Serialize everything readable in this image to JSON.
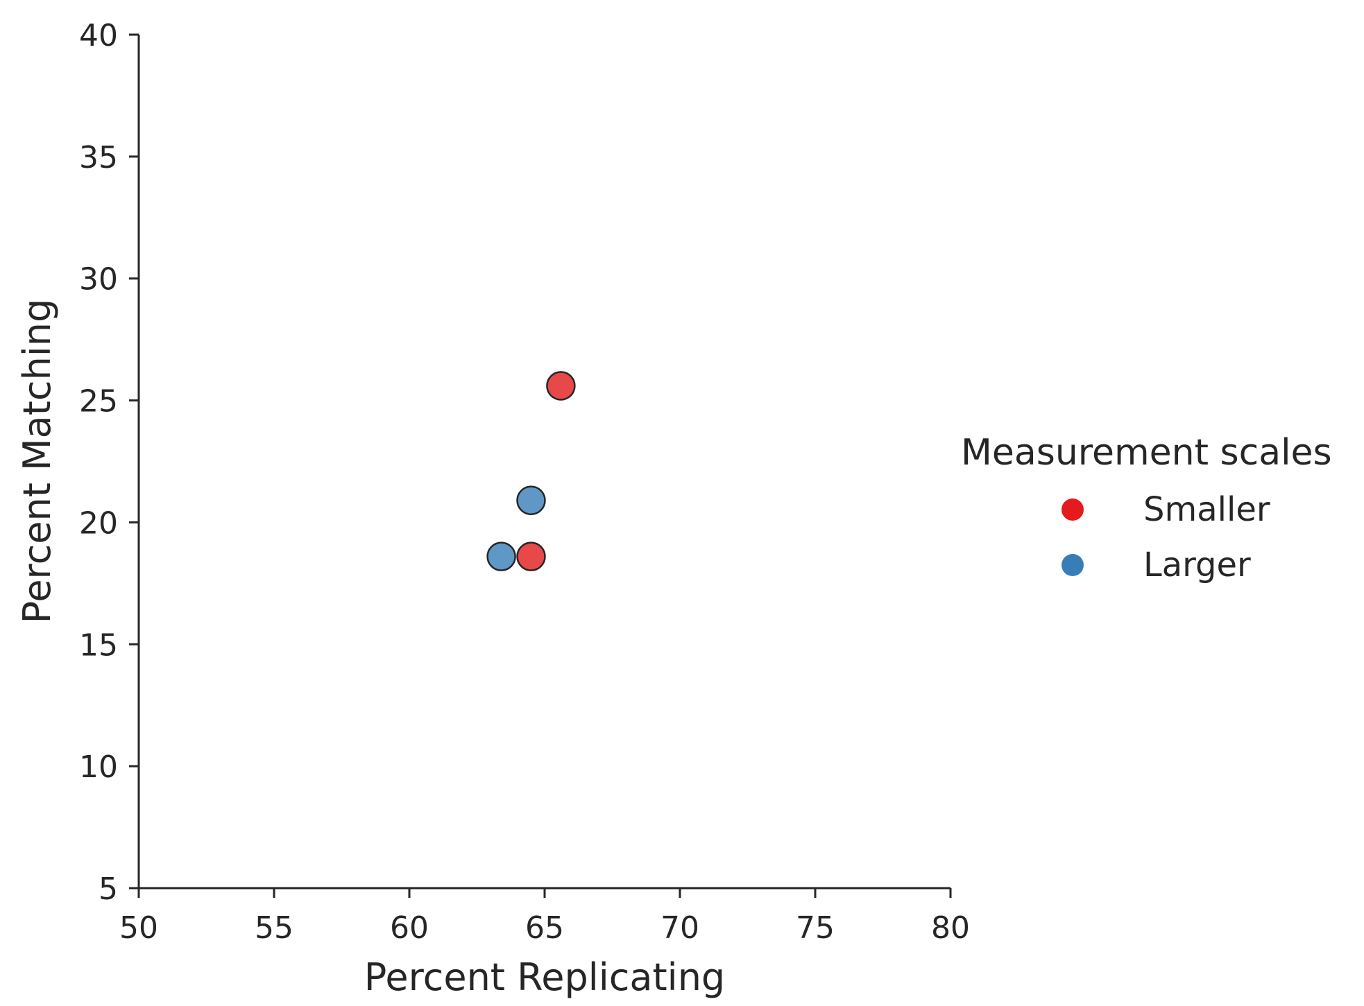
{
  "chart_data": {
    "type": "scatter",
    "xlabel": "Percent Replicating",
    "ylabel": "Percent Matching",
    "xlim": [
      50,
      80
    ],
    "ylim": [
      5,
      40
    ],
    "xticks": [
      "50",
      "55",
      "60",
      "65",
      "70",
      "75",
      "80"
    ],
    "yticks": [
      "5",
      "10",
      "15",
      "20",
      "25",
      "30",
      "35",
      "40"
    ],
    "grid": false,
    "legend": {
      "title": "Measurement scales",
      "placement": "center-right, outside plot"
    },
    "series": [
      {
        "name": "Smaller",
        "color": "#e41a1c",
        "points": [
          {
            "x": 65.6,
            "y": 25.6
          },
          {
            "x": 64.5,
            "y": 18.6
          }
        ]
      },
      {
        "name": "Larger",
        "color": "#377eb8",
        "points": [
          {
            "x": 64.5,
            "y": 20.9
          },
          {
            "x": 63.4,
            "y": 18.6
          }
        ]
      }
    ]
  }
}
